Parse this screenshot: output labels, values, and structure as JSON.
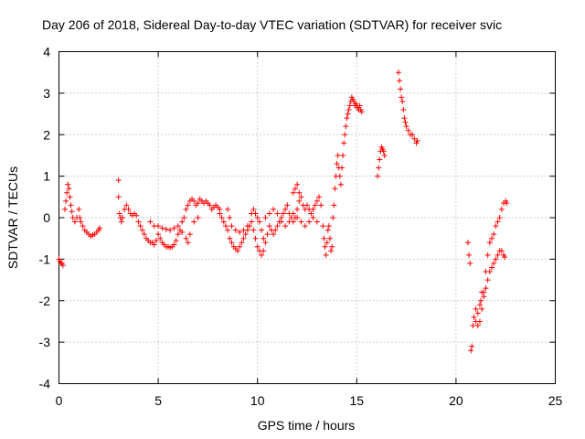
{
  "chart_data": {
    "type": "scatter",
    "title": "Day 206 of 2018, Sidereal Day-to-day VTEC variation (SDTVAR) for receiver svic",
    "xlabel": "GPS time / hours",
    "ylabel": "SDTVAR / TECUs",
    "xlim": [
      0,
      25
    ],
    "ylim": [
      -4,
      4
    ],
    "xticks": [
      "0",
      "5",
      "10",
      "15",
      "20",
      "25"
    ],
    "yticks": [
      "-4",
      "-3",
      "-2",
      "-1",
      "0",
      "1",
      "2",
      "3",
      "4"
    ],
    "grid": true,
    "marker": "+",
    "color": "#ff0000",
    "series": [
      {
        "name": "SDTVAR",
        "points": [
          [
            0.0,
            -1.0
          ],
          [
            0.05,
            -1.05
          ],
          [
            0.1,
            -1.1
          ],
          [
            0.15,
            -1.1
          ],
          [
            0.2,
            -1.15
          ],
          [
            0.3,
            0.2
          ],
          [
            0.35,
            0.4
          ],
          [
            0.4,
            0.6
          ],
          [
            0.45,
            0.8
          ],
          [
            0.5,
            0.7
          ],
          [
            0.55,
            0.5
          ],
          [
            0.6,
            0.3
          ],
          [
            0.65,
            0.15
          ],
          [
            0.7,
            0.0
          ],
          [
            0.8,
            -0.1
          ],
          [
            0.9,
            0.0
          ],
          [
            1.0,
            0.2
          ],
          [
            1.05,
            0.0
          ],
          [
            1.1,
            -0.1
          ],
          [
            1.2,
            -0.2
          ],
          [
            1.3,
            -0.3
          ],
          [
            1.4,
            -0.35
          ],
          [
            1.5,
            -0.4
          ],
          [
            1.6,
            -0.45
          ],
          [
            1.7,
            -0.42
          ],
          [
            1.8,
            -0.4
          ],
          [
            1.9,
            -0.35
          ],
          [
            2.0,
            -0.3
          ],
          [
            2.05,
            -0.25
          ],
          [
            3.0,
            0.9
          ],
          [
            3.0,
            0.5
          ],
          [
            3.05,
            0.1
          ],
          [
            3.1,
            0.0
          ],
          [
            3.15,
            -0.1
          ],
          [
            3.2,
            0.0
          ],
          [
            3.3,
            0.2
          ],
          [
            3.4,
            0.3
          ],
          [
            3.5,
            0.2
          ],
          [
            3.6,
            0.1
          ],
          [
            3.7,
            0.05
          ],
          [
            3.8,
            0.1
          ],
          [
            3.9,
            0.05
          ],
          [
            4.0,
            -0.1
          ],
          [
            4.1,
            -0.2
          ],
          [
            4.2,
            -0.3
          ],
          [
            4.3,
            -0.4
          ],
          [
            4.4,
            -0.5
          ],
          [
            4.5,
            -0.55
          ],
          [
            4.6,
            -0.6
          ],
          [
            4.7,
            -0.6
          ],
          [
            4.8,
            -0.65
          ],
          [
            4.9,
            -0.55
          ],
          [
            5.0,
            -0.4
          ],
          [
            5.1,
            -0.5
          ],
          [
            5.2,
            -0.6
          ],
          [
            5.3,
            -0.65
          ],
          [
            5.4,
            -0.7
          ],
          [
            5.5,
            -0.7
          ],
          [
            5.6,
            -0.72
          ],
          [
            5.7,
            -0.7
          ],
          [
            5.8,
            -0.65
          ],
          [
            5.9,
            -0.55
          ],
          [
            6.0,
            -0.4
          ],
          [
            6.1,
            -0.3
          ],
          [
            6.2,
            -0.1
          ],
          [
            6.3,
            0.0
          ],
          [
            6.4,
            0.2
          ],
          [
            6.5,
            0.3
          ],
          [
            6.6,
            0.4
          ],
          [
            6.7,
            0.45
          ],
          [
            6.8,
            0.4
          ],
          [
            6.9,
            0.3
          ],
          [
            7.0,
            0.35
          ],
          [
            7.1,
            0.45
          ],
          [
            7.2,
            0.4
          ],
          [
            7.3,
            0.35
          ],
          [
            7.4,
            0.4
          ],
          [
            7.5,
            0.35
          ],
          [
            7.6,
            0.3
          ],
          [
            7.7,
            0.2
          ],
          [
            7.8,
            0.25
          ],
          [
            7.9,
            0.3
          ],
          [
            8.0,
            0.25
          ],
          [
            8.1,
            0.2
          ],
          [
            4.6,
            -0.1
          ],
          [
            4.8,
            -0.2
          ],
          [
            5.0,
            -0.2
          ],
          [
            5.2,
            -0.25
          ],
          [
            5.4,
            -0.28
          ],
          [
            5.6,
            -0.3
          ],
          [
            5.8,
            -0.25
          ],
          [
            6.0,
            -0.2
          ],
          [
            6.2,
            -0.35
          ],
          [
            6.4,
            -0.5
          ],
          [
            6.5,
            -0.6
          ],
          [
            6.6,
            -0.4
          ],
          [
            6.8,
            -0.1
          ],
          [
            7.0,
            0.0
          ],
          [
            8.1,
            0.1
          ],
          [
            8.2,
            0.0
          ],
          [
            8.3,
            -0.1
          ],
          [
            8.4,
            -0.2
          ],
          [
            8.5,
            -0.3
          ],
          [
            8.6,
            -0.5
          ],
          [
            8.7,
            -0.6
          ],
          [
            8.8,
            -0.7
          ],
          [
            8.9,
            -0.75
          ],
          [
            9.0,
            -0.8
          ],
          [
            9.1,
            -0.7
          ],
          [
            9.2,
            -0.6
          ],
          [
            9.3,
            -0.5
          ],
          [
            9.4,
            -0.4
          ],
          [
            9.5,
            -0.3
          ],
          [
            9.6,
            -0.2
          ],
          [
            9.7,
            -0.1
          ],
          [
            9.8,
            -0.3
          ],
          [
            9.9,
            -0.5
          ],
          [
            10.0,
            -0.7
          ],
          [
            10.1,
            -0.8
          ],
          [
            10.2,
            -0.9
          ],
          [
            10.3,
            -0.8
          ],
          [
            8.5,
            0.2
          ],
          [
            8.6,
            0.0
          ],
          [
            8.7,
            -0.2
          ],
          [
            8.9,
            -0.3
          ],
          [
            9.1,
            -0.35
          ],
          [
            9.3,
            -0.3
          ],
          [
            9.5,
            -0.2
          ],
          [
            9.7,
            0.1
          ],
          [
            9.8,
            0.2
          ],
          [
            9.9,
            0.1
          ],
          [
            10.0,
            0.0
          ],
          [
            10.1,
            -0.1
          ],
          [
            10.2,
            -0.3
          ],
          [
            10.3,
            -0.5
          ],
          [
            10.4,
            -0.6
          ],
          [
            10.5,
            -0.4
          ],
          [
            10.6,
            -0.2
          ],
          [
            10.7,
            -0.3
          ],
          [
            10.8,
            -0.4
          ],
          [
            10.9,
            -0.3
          ],
          [
            11.0,
            -0.2
          ],
          [
            11.1,
            -0.1
          ],
          [
            11.2,
            0.0
          ],
          [
            11.3,
            0.1
          ],
          [
            11.4,
            0.2
          ],
          [
            11.5,
            0.3
          ],
          [
            11.6,
            0.1
          ],
          [
            11.7,
            0.0
          ],
          [
            11.8,
            -0.1
          ],
          [
            11.9,
            0.0
          ],
          [
            12.0,
            0.2
          ],
          [
            12.1,
            0.4
          ],
          [
            12.2,
            0.5
          ],
          [
            12.3,
            0.3
          ],
          [
            12.4,
            0.2
          ],
          [
            12.5,
            0.3
          ],
          [
            12.6,
            0.2
          ],
          [
            12.7,
            0.1
          ],
          [
            12.8,
            0.2
          ],
          [
            12.9,
            0.3
          ],
          [
            13.0,
            0.4
          ],
          [
            13.1,
            0.5
          ],
          [
            13.2,
            0.3
          ],
          [
            10.4,
            0.0
          ],
          [
            10.6,
            0.1
          ],
          [
            10.8,
            0.2
          ],
          [
            11.0,
            0.1
          ],
          [
            11.2,
            -0.1
          ],
          [
            11.4,
            -0.2
          ],
          [
            11.6,
            -0.1
          ],
          [
            11.8,
            0.1
          ],
          [
            12.0,
            0.0
          ],
          [
            12.2,
            -0.1
          ],
          [
            12.4,
            -0.2
          ],
          [
            12.6,
            -0.1
          ],
          [
            12.8,
            0.0
          ],
          [
            13.0,
            -0.1
          ],
          [
            11.8,
            0.6
          ],
          [
            11.9,
            0.7
          ],
          [
            12.0,
            0.8
          ],
          [
            12.1,
            0.6
          ],
          [
            13.3,
            -0.2
          ],
          [
            13.35,
            -0.5
          ],
          [
            13.4,
            -0.7
          ],
          [
            13.45,
            -0.9
          ],
          [
            13.5,
            -0.6
          ],
          [
            13.55,
            -0.3
          ],
          [
            13.6,
            -0.2
          ],
          [
            13.65,
            -0.5
          ],
          [
            13.7,
            -0.8
          ],
          [
            13.75,
            -0.7
          ],
          [
            13.8,
            0.0
          ],
          [
            13.85,
            0.3
          ],
          [
            13.9,
            0.7
          ],
          [
            13.95,
            1.0
          ],
          [
            14.0,
            1.3
          ],
          [
            14.05,
            1.5
          ],
          [
            14.1,
            1.2
          ],
          [
            14.15,
            1.0
          ],
          [
            14.2,
            0.8
          ],
          [
            14.25,
            1.2
          ],
          [
            14.3,
            1.5
          ],
          [
            14.35,
            1.8
          ],
          [
            14.4,
            2.0
          ],
          [
            14.45,
            2.2
          ],
          [
            14.5,
            2.4
          ],
          [
            14.55,
            2.5
          ],
          [
            14.6,
            2.6
          ],
          [
            14.65,
            2.7
          ],
          [
            14.7,
            2.8
          ],
          [
            14.75,
            2.9
          ],
          [
            14.8,
            2.85
          ],
          [
            14.85,
            2.8
          ],
          [
            14.9,
            2.7
          ],
          [
            14.95,
            2.75
          ],
          [
            15.0,
            2.7
          ],
          [
            15.05,
            2.65
          ],
          [
            15.1,
            2.6
          ],
          [
            15.15,
            2.7
          ],
          [
            15.2,
            2.6
          ],
          [
            15.25,
            2.55
          ],
          [
            16.05,
            1.0
          ],
          [
            16.1,
            1.2
          ],
          [
            16.15,
            1.4
          ],
          [
            16.2,
            1.6
          ],
          [
            16.25,
            1.7
          ],
          [
            16.3,
            1.65
          ],
          [
            16.35,
            1.6
          ],
          [
            16.4,
            1.5
          ],
          [
            17.1,
            3.5
          ],
          [
            17.15,
            3.3
          ],
          [
            17.2,
            3.1
          ],
          [
            17.25,
            2.9
          ],
          [
            17.3,
            2.8
          ],
          [
            17.35,
            2.6
          ],
          [
            17.4,
            2.4
          ],
          [
            17.45,
            2.3
          ],
          [
            17.5,
            2.2
          ],
          [
            17.6,
            2.1
          ],
          [
            17.7,
            2.0
          ],
          [
            17.8,
            2.0
          ],
          [
            17.9,
            1.9
          ],
          [
            18.0,
            1.8
          ],
          [
            18.05,
            1.85
          ],
          [
            20.6,
            -0.6
          ],
          [
            20.65,
            -0.9
          ],
          [
            20.7,
            -1.1
          ],
          [
            20.75,
            -3.2
          ],
          [
            20.8,
            -3.1
          ],
          [
            20.85,
            -2.6
          ],
          [
            20.9,
            -2.4
          ],
          [
            21.0,
            -2.2
          ],
          [
            21.1,
            -2.3
          ],
          [
            21.2,
            -2.1
          ],
          [
            21.25,
            -2.0
          ],
          [
            21.3,
            -1.8
          ],
          [
            21.4,
            -1.9
          ],
          [
            21.5,
            -1.7
          ],
          [
            21.6,
            -1.5
          ],
          [
            21.7,
            -1.3
          ],
          [
            21.8,
            -1.2
          ],
          [
            21.9,
            -1.1
          ],
          [
            22.0,
            -1.0
          ],
          [
            22.1,
            -0.9
          ],
          [
            22.2,
            -0.8
          ],
          [
            22.3,
            -0.8
          ],
          [
            22.4,
            -0.9
          ],
          [
            22.45,
            -0.95
          ],
          [
            21.0,
            -2.5
          ],
          [
            21.1,
            -2.6
          ],
          [
            21.2,
            -2.5
          ],
          [
            21.3,
            -2.2
          ],
          [
            21.4,
            -1.8
          ],
          [
            21.5,
            -1.3
          ],
          [
            21.6,
            -0.9
          ],
          [
            21.7,
            -0.6
          ],
          [
            21.8,
            -0.5
          ],
          [
            21.9,
            -0.4
          ],
          [
            22.0,
            -0.2
          ],
          [
            22.1,
            -0.1
          ],
          [
            22.2,
            0.0
          ],
          [
            22.3,
            0.2
          ],
          [
            22.4,
            0.35
          ],
          [
            22.5,
            0.4
          ],
          [
            22.55,
            0.35
          ]
        ]
      }
    ]
  }
}
